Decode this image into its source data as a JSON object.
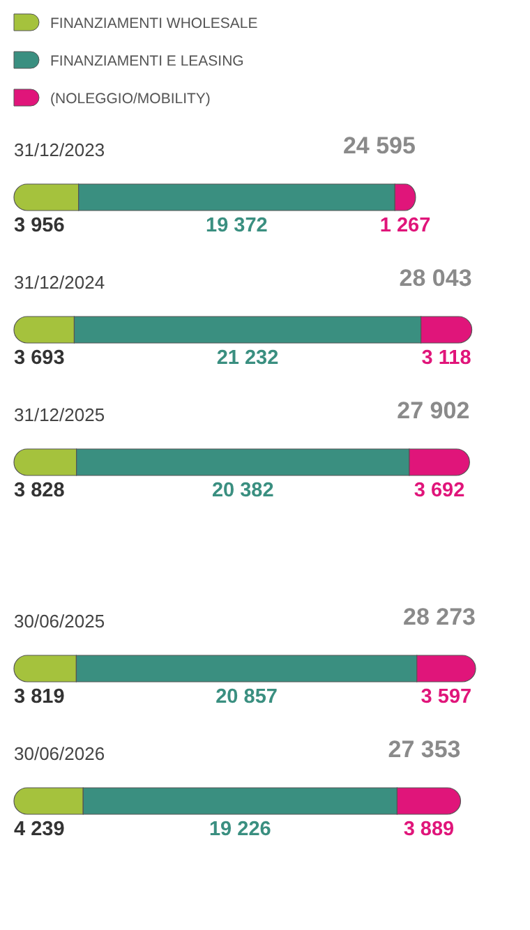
{
  "chart_data": [
    {
      "type": "bar",
      "orientation": "horizontal",
      "stacked": true,
      "legend": "top left",
      "categories": [
        "31/12/2023",
        "31/12/2024",
        "31/12/2025"
      ],
      "series": [
        {
          "name": "FINANZIAMENTI WHOLESALE",
          "color": "#a5c23d",
          "values": [
            3956,
            3693,
            3828
          ],
          "value_labels": [
            "3 956",
            "3 693",
            "3 828"
          ]
        },
        {
          "name": "FINANZIAMENTI E LEASING",
          "color": "#3a8f80",
          "values": [
            19372,
            21232,
            20382
          ],
          "value_labels": [
            "19 372",
            "21 232",
            "20 382"
          ]
        },
        {
          "name": "(NOLEGGIO/MOBILITY)",
          "color": "#e0157a",
          "values": [
            1267,
            3118,
            3692
          ],
          "value_labels": [
            "1 267",
            "3 118",
            "3 692"
          ]
        }
      ],
      "totals": [
        "24 595",
        "28 043",
        "27 902"
      ]
    },
    {
      "type": "bar",
      "orientation": "horizontal",
      "stacked": true,
      "categories": [
        "30/06/2025",
        "30/06/2026"
      ],
      "series": [
        {
          "color": "#a5c23d",
          "values": [
            3819,
            4239
          ],
          "value_labels": [
            "3 819",
            "4 239"
          ]
        },
        {
          "color": "#3a8f80",
          "values": [
            20857,
            19226
          ],
          "value_labels": [
            "20 857",
            "19 226"
          ]
        },
        {
          "color": "#e0157a",
          "values": [
            3597,
            3889
          ],
          "value_labels": [
            "3 597",
            "3 889"
          ]
        }
      ],
      "totals": [
        "28 273",
        "27 353"
      ]
    }
  ]
}
